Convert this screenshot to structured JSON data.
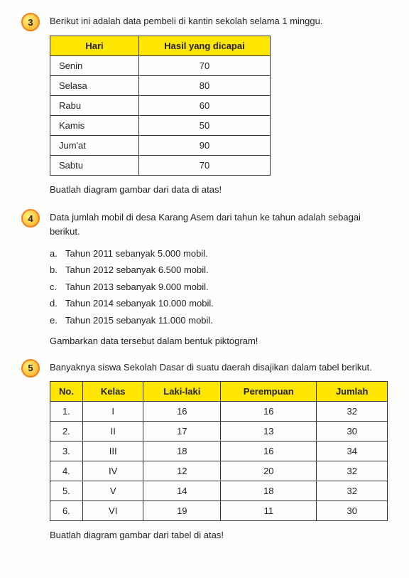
{
  "q3": {
    "num": "3",
    "intro": "Berikut ini adalah data pembeli di kantin sekolah selama 1 minggu.",
    "headers": [
      "Hari",
      "Hasil yang dicapai"
    ],
    "rows": [
      [
        "Senin",
        "70"
      ],
      [
        "Selasa",
        "80"
      ],
      [
        "Rabu",
        "60"
      ],
      [
        "Kamis",
        "50"
      ],
      [
        "Jum'at",
        "90"
      ],
      [
        "Sabtu",
        "70"
      ]
    ],
    "instruction": "Buatlah diagram gambar dari data di atas!"
  },
  "q4": {
    "num": "4",
    "intro": "Data jumlah mobil di desa Karang Asem dari tahun ke tahun adalah sebagai berikut.",
    "items": [
      {
        "letter": "a.",
        "text": "Tahun 2011 sebanyak 5.000 mobil."
      },
      {
        "letter": "b.",
        "text": "Tahun 2012 sebanyak 6.500 mobil."
      },
      {
        "letter": "c.",
        "text": "Tahun 2013 sebanyak 9.000 mobil."
      },
      {
        "letter": "d.",
        "text": "Tahun 2014 sebanyak 10.000 mobil."
      },
      {
        "letter": "e.",
        "text": "Tahun 2015 sebanyak 11.000 mobil."
      }
    ],
    "instruction": "Gambarkan data tersebut dalam bentuk piktogram!"
  },
  "q5": {
    "num": "5",
    "intro": "Banyaknya siswa Sekolah Dasar di suatu daerah disajikan dalam tabel berikut.",
    "headers": [
      "No.",
      "Kelas",
      "Laki-laki",
      "Perempuan",
      "Jumlah"
    ],
    "rows": [
      [
        "1.",
        "I",
        "16",
        "16",
        "32"
      ],
      [
        "2.",
        "II",
        "17",
        "13",
        "30"
      ],
      [
        "3.",
        "III",
        "18",
        "16",
        "34"
      ],
      [
        "4.",
        "IV",
        "12",
        "20",
        "32"
      ],
      [
        "5.",
        "V",
        "14",
        "18",
        "32"
      ],
      [
        "6.",
        "VI",
        "19",
        "11",
        "30"
      ]
    ],
    "instruction": "Buatlah diagram gambar dari tabel di atas!"
  }
}
